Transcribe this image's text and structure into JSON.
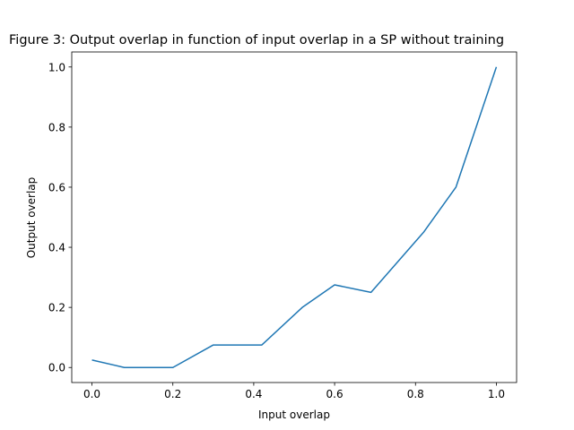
{
  "chart_data": {
    "type": "line",
    "title": "Figure 3: Output overlap in function of input overlap in a SP without training",
    "xlabel": "Input overlap",
    "ylabel": "Output overlap",
    "xlim": [
      -0.05,
      1.05
    ],
    "ylim": [
      -0.05,
      1.05
    ],
    "xticks": [
      0.0,
      0.2,
      0.4,
      0.6,
      0.8,
      1.0
    ],
    "xtick_labels": [
      "0.0",
      "0.2",
      "0.4",
      "0.6",
      "0.8",
      "1.0"
    ],
    "yticks": [
      0.0,
      0.2,
      0.4,
      0.6,
      0.8,
      1.0
    ],
    "ytick_labels": [
      "0.0",
      "0.2",
      "0.4",
      "0.6",
      "0.8",
      "1.0"
    ],
    "grid": false,
    "series": [
      {
        "color": "#1f77b4",
        "x": [
          0.0,
          0.08,
          0.2,
          0.3,
          0.42,
          0.52,
          0.6,
          0.69,
          0.82,
          0.9,
          1.0
        ],
        "y": [
          0.025,
          0.0,
          0.0,
          0.075,
          0.075,
          0.2,
          0.275,
          0.25,
          0.45,
          0.6,
          1.0
        ]
      }
    ]
  }
}
